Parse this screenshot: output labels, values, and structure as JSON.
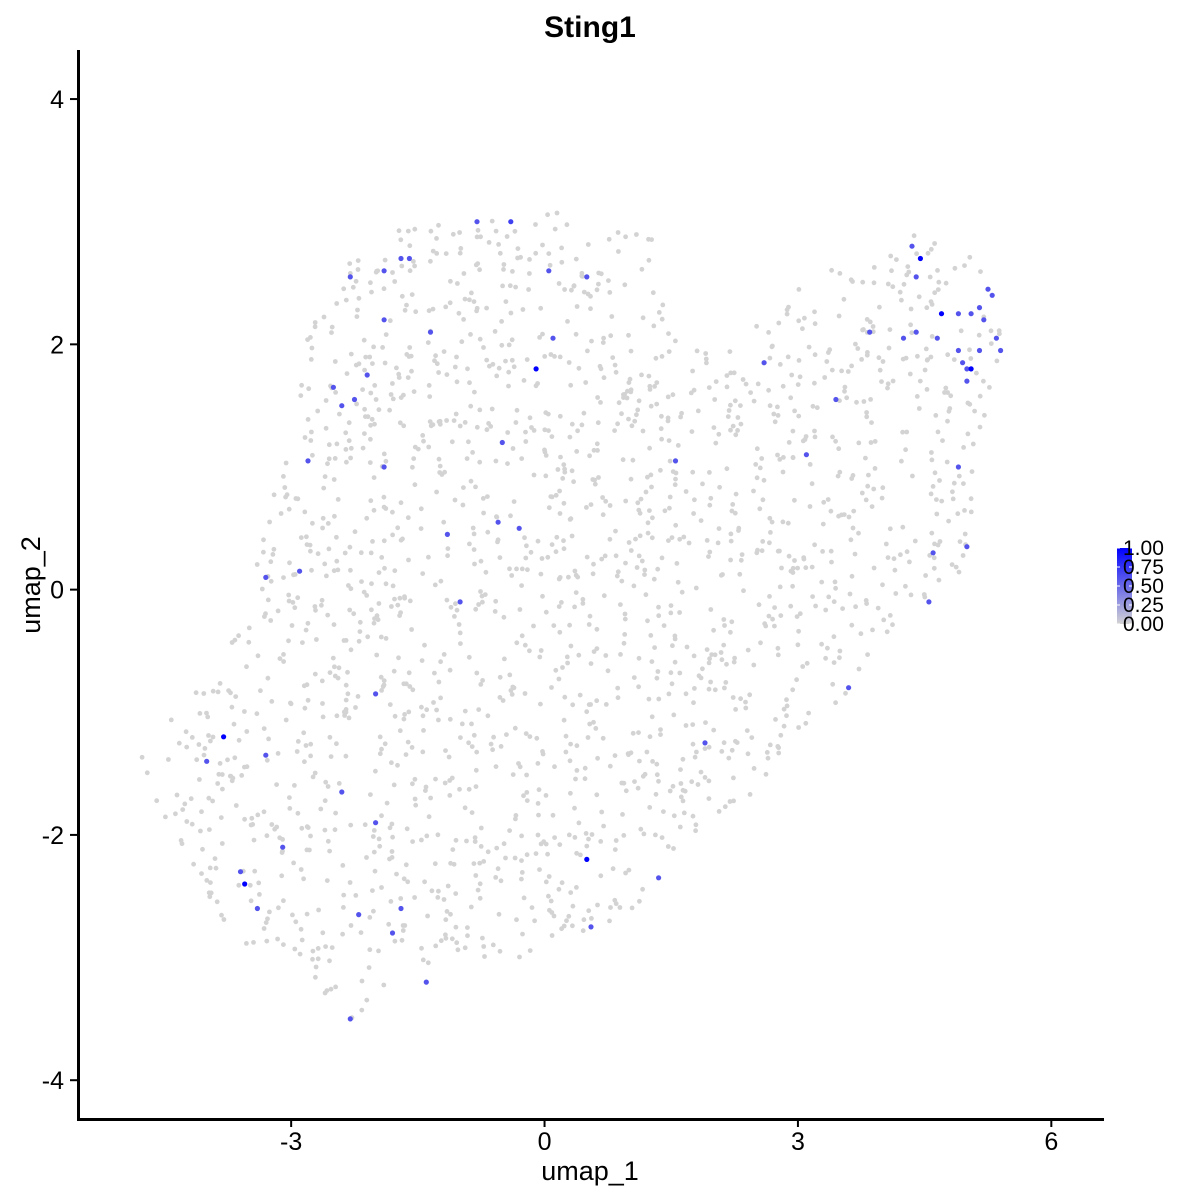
{
  "chart_data": {
    "type": "scatter",
    "title": "Sting1",
    "xlabel": "umap_1",
    "ylabel": "umap_2",
    "xlim": [
      -5.5,
      6.6
    ],
    "ylim": [
      -4.3,
      4.4
    ],
    "x_ticks": [
      -3,
      0,
      3,
      6
    ],
    "x_tick_labels": [
      "-3",
      "0",
      "3",
      "6"
    ],
    "y_ticks": [
      -4,
      -2,
      0,
      2,
      4
    ],
    "y_tick_labels": [
      "-4",
      "-2",
      "0",
      "2",
      "4"
    ],
    "grid": false,
    "color_scale": {
      "low_color": "#d3d3d3",
      "high_color": "#0000ff",
      "min": 0,
      "max": 1,
      "ticks": [
        0,
        0.25,
        0.5,
        0.75,
        1
      ],
      "tick_labels": [
        "0.00",
        "0.25",
        "0.50",
        "0.75",
        "1.00"
      ],
      "legend_position": "right"
    },
    "expressing_cells": [
      {
        "x": -0.4,
        "y": 3.0,
        "v": 0.7
      },
      {
        "x": -0.8,
        "y": 3.0,
        "v": 0.6
      },
      {
        "x": -1.6,
        "y": 2.7,
        "v": 0.6
      },
      {
        "x": -1.7,
        "y": 2.7,
        "v": 0.6
      },
      {
        "x": -2.3,
        "y": 2.55,
        "v": 0.6
      },
      {
        "x": -1.9,
        "y": 2.6,
        "v": 0.6
      },
      {
        "x": 0.05,
        "y": 2.6,
        "v": 0.6
      },
      {
        "x": 0.5,
        "y": 2.55,
        "v": 0.6
      },
      {
        "x": -1.9,
        "y": 2.2,
        "v": 0.6
      },
      {
        "x": -1.35,
        "y": 2.1,
        "v": 0.6
      },
      {
        "x": -0.1,
        "y": 1.8,
        "v": 1.0
      },
      {
        "x": 0.1,
        "y": 2.05,
        "v": 0.6
      },
      {
        "x": -2.1,
        "y": 1.75,
        "v": 0.6
      },
      {
        "x": -2.5,
        "y": 1.65,
        "v": 0.6
      },
      {
        "x": -2.4,
        "y": 1.5,
        "v": 0.6
      },
      {
        "x": -2.25,
        "y": 1.55,
        "v": 0.6
      },
      {
        "x": -0.5,
        "y": 1.2,
        "v": 0.6
      },
      {
        "x": -2.8,
        "y": 1.05,
        "v": 0.6
      },
      {
        "x": -1.9,
        "y": 1.0,
        "v": 0.6
      },
      {
        "x": -1.15,
        "y": 0.45,
        "v": 0.6
      },
      {
        "x": -0.55,
        "y": 0.55,
        "v": 0.6
      },
      {
        "x": -0.3,
        "y": 0.5,
        "v": 0.6
      },
      {
        "x": -2.9,
        "y": 0.15,
        "v": 0.6
      },
      {
        "x": -3.3,
        "y": 0.1,
        "v": 0.6
      },
      {
        "x": -1.0,
        "y": -0.1,
        "v": 0.6
      },
      {
        "x": -2.0,
        "y": -0.85,
        "v": 0.6
      },
      {
        "x": -3.8,
        "y": -1.2,
        "v": 1.0
      },
      {
        "x": -4.0,
        "y": -1.4,
        "v": 0.6
      },
      {
        "x": -3.3,
        "y": -1.35,
        "v": 0.6
      },
      {
        "x": -2.4,
        "y": -1.65,
        "v": 0.6
      },
      {
        "x": -2.0,
        "y": -1.9,
        "v": 0.6
      },
      {
        "x": -3.1,
        "y": -2.1,
        "v": 0.6
      },
      {
        "x": -3.6,
        "y": -2.3,
        "v": 0.6
      },
      {
        "x": -3.55,
        "y": -2.4,
        "v": 1.0
      },
      {
        "x": -3.4,
        "y": -2.6,
        "v": 0.6
      },
      {
        "x": -2.2,
        "y": -2.65,
        "v": 0.6
      },
      {
        "x": -1.7,
        "y": -2.6,
        "v": 0.6
      },
      {
        "x": -1.8,
        "y": -2.8,
        "v": 0.6
      },
      {
        "x": -1.4,
        "y": -3.2,
        "v": 0.6
      },
      {
        "x": -2.3,
        "y": -3.5,
        "v": 0.6
      },
      {
        "x": 0.5,
        "y": -2.2,
        "v": 1.0
      },
      {
        "x": 0.55,
        "y": -2.75,
        "v": 0.6
      },
      {
        "x": 1.35,
        "y": -2.35,
        "v": 0.6
      },
      {
        "x": 1.9,
        "y": -1.25,
        "v": 0.6
      },
      {
        "x": 1.55,
        "y": 1.05,
        "v": 0.6
      },
      {
        "x": 2.6,
        "y": 1.85,
        "v": 0.6
      },
      {
        "x": 3.1,
        "y": 1.1,
        "v": 0.6
      },
      {
        "x": 3.45,
        "y": 1.55,
        "v": 0.6
      },
      {
        "x": 3.85,
        "y": 2.1,
        "v": 0.6
      },
      {
        "x": 4.25,
        "y": 2.05,
        "v": 0.6
      },
      {
        "x": 4.4,
        "y": 2.1,
        "v": 0.6
      },
      {
        "x": 4.35,
        "y": 2.8,
        "v": 0.6
      },
      {
        "x": 4.45,
        "y": 2.7,
        "v": 1.0
      },
      {
        "x": 4.4,
        "y": 2.55,
        "v": 0.6
      },
      {
        "x": 4.7,
        "y": 2.25,
        "v": 1.0
      },
      {
        "x": 4.65,
        "y": 2.05,
        "v": 0.6
      },
      {
        "x": 4.9,
        "y": 2.25,
        "v": 0.6
      },
      {
        "x": 5.05,
        "y": 2.25,
        "v": 0.6
      },
      {
        "x": 5.15,
        "y": 2.3,
        "v": 0.6
      },
      {
        "x": 5.25,
        "y": 2.45,
        "v": 0.6
      },
      {
        "x": 5.3,
        "y": 2.4,
        "v": 0.6
      },
      {
        "x": 5.35,
        "y": 2.05,
        "v": 0.6
      },
      {
        "x": 5.4,
        "y": 1.95,
        "v": 0.6
      },
      {
        "x": 5.2,
        "y": 2.2,
        "v": 0.6
      },
      {
        "x": 4.9,
        "y": 1.95,
        "v": 0.6
      },
      {
        "x": 4.95,
        "y": 1.85,
        "v": 0.6
      },
      {
        "x": 5.0,
        "y": 1.8,
        "v": 0.6
      },
      {
        "x": 5.05,
        "y": 1.8,
        "v": 1.0
      },
      {
        "x": 5.15,
        "y": 1.95,
        "v": 0.6
      },
      {
        "x": 5.0,
        "y": 1.7,
        "v": 0.6
      },
      {
        "x": 4.9,
        "y": 1.0,
        "v": 0.6
      },
      {
        "x": 5.0,
        "y": 0.35,
        "v": 0.6
      },
      {
        "x": 4.6,
        "y": 0.3,
        "v": 0.6
      },
      {
        "x": 4.55,
        "y": -0.1,
        "v": 0.6
      },
      {
        "x": 3.6,
        "y": -0.8,
        "v": 0.6
      }
    ]
  }
}
